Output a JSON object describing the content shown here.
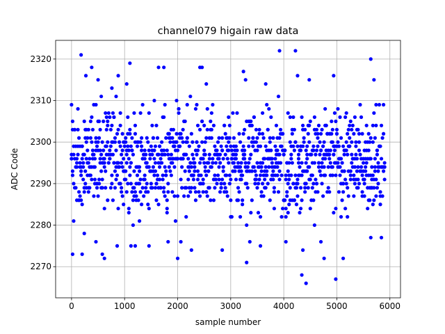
{
  "chart_data": {
    "type": "scatter",
    "title": "channel079 higain raw data",
    "xlabel": "sample number",
    "ylabel": "ADC Code",
    "xlim": [
      -300,
      6200
    ],
    "ylim": [
      2262.5,
      2324.5
    ],
    "xticks": [
      0,
      1000,
      2000,
      3000,
      4000,
      5000,
      6000
    ],
    "yticks": [
      2270,
      2280,
      2290,
      2300,
      2310,
      2320
    ],
    "grid": true,
    "marker_color": "#0000ff",
    "n_samples": 5900,
    "x_step": 20,
    "typical_range": [
      2280,
      2311
    ],
    "center": 2295.5,
    "outliers": [
      {
        "x": 20,
        "y": 2273
      },
      {
        "x": 180,
        "y": 2321
      },
      {
        "x": 200,
        "y": 2273
      },
      {
        "x": 240,
        "y": 2278
      },
      {
        "x": 270,
        "y": 2316
      },
      {
        "x": 380,
        "y": 2318
      },
      {
        "x": 460,
        "y": 2276
      },
      {
        "x": 500,
        "y": 2315
      },
      {
        "x": 580,
        "y": 2273
      },
      {
        "x": 620,
        "y": 2272
      },
      {
        "x": 760,
        "y": 2313
      },
      {
        "x": 860,
        "y": 2275
      },
      {
        "x": 880,
        "y": 2316
      },
      {
        "x": 1040,
        "y": 2314
      },
      {
        "x": 1100,
        "y": 2319
      },
      {
        "x": 1120,
        "y": 2275
      },
      {
        "x": 1200,
        "y": 2275
      },
      {
        "x": 1460,
        "y": 2275
      },
      {
        "x": 1640,
        "y": 2318
      },
      {
        "x": 1740,
        "y": 2318
      },
      {
        "x": 1820,
        "y": 2276
      },
      {
        "x": 2000,
        "y": 2272
      },
      {
        "x": 2060,
        "y": 2276
      },
      {
        "x": 2260,
        "y": 2274
      },
      {
        "x": 2420,
        "y": 2318
      },
      {
        "x": 2460,
        "y": 2318
      },
      {
        "x": 2540,
        "y": 2314
      },
      {
        "x": 2840,
        "y": 2274
      },
      {
        "x": 3240,
        "y": 2317
      },
      {
        "x": 3280,
        "y": 2315
      },
      {
        "x": 3300,
        "y": 2271
      },
      {
        "x": 3360,
        "y": 2276
      },
      {
        "x": 3560,
        "y": 2275
      },
      {
        "x": 3660,
        "y": 2314
      },
      {
        "x": 3920,
        "y": 2322
      },
      {
        "x": 4040,
        "y": 2276
      },
      {
        "x": 4220,
        "y": 2322
      },
      {
        "x": 4260,
        "y": 2316
      },
      {
        "x": 4340,
        "y": 2268
      },
      {
        "x": 4360,
        "y": 2274
      },
      {
        "x": 4420,
        "y": 2266
      },
      {
        "x": 4480,
        "y": 2315
      },
      {
        "x": 4700,
        "y": 2276
      },
      {
        "x": 4760,
        "y": 2272
      },
      {
        "x": 4940,
        "y": 2316
      },
      {
        "x": 4980,
        "y": 2267
      },
      {
        "x": 5120,
        "y": 2272
      },
      {
        "x": 5640,
        "y": 2320
      },
      {
        "x": 5640,
        "y": 2277
      },
      {
        "x": 5700,
        "y": 2315
      },
      {
        "x": 5840,
        "y": 2277
      }
    ]
  }
}
